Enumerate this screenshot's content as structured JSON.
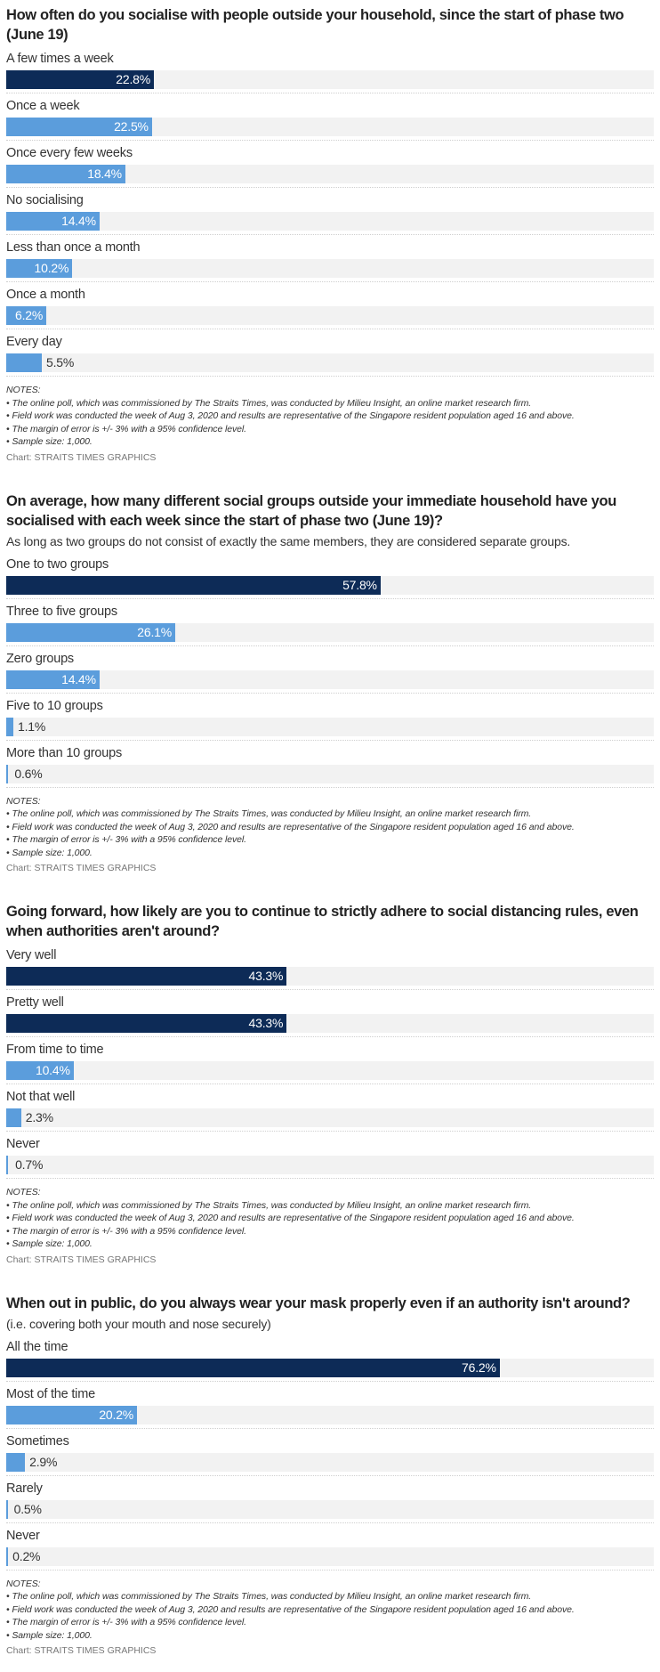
{
  "colors": {
    "highlight": "#0d2b57",
    "bar": "#5b9ddc",
    "track": "#f2f2f2"
  },
  "notes_heading": "NOTES:",
  "notes": [
    "• The online poll, which was commissioned by The Straits Times, was conducted by Milieu Insight, an online market research firm.",
    "• Field work was conducted the week of Aug 3, 2020 and results are representative of the Singapore resident population aged 16 and above.",
    "• The margin of error is +/- 3% with a 95% confidence level.",
    "• Sample size: 1,000."
  ],
  "credit": "Chart: STRAITS TIMES GRAPHICS",
  "chart_data": [
    {
      "type": "bar",
      "title": "How often do you socialise with people outside your household, since the start of phase two (June 19)",
      "subtitle": "",
      "unit": "%",
      "xlim": [
        0,
        100
      ],
      "categories": [
        "A few times a week",
        "Once a week",
        "Once every few weeks",
        "No socialising",
        "Less than once a month",
        "Once a month",
        "Every day"
      ],
      "values": [
        22.8,
        22.5,
        18.4,
        14.4,
        10.2,
        6.2,
        5.5
      ],
      "labels": [
        "22.8%",
        "22.5%",
        "18.4%",
        "14.4%",
        "10.2%",
        "6.2%",
        "5.5%"
      ]
    },
    {
      "type": "bar",
      "title": "On average, how many different social groups outside your immediate household have you socialised with each week since the start of phase two (June 19)?",
      "subtitle": "As long as two groups do not consist of exactly the same members, they are considered separate groups.",
      "unit": "%",
      "xlim": [
        0,
        100
      ],
      "categories": [
        "One to two groups",
        "Three to five groups",
        "Zero groups",
        "Five to 10 groups",
        "More than 10 groups"
      ],
      "values": [
        57.8,
        26.1,
        14.4,
        1.1,
        0.6
      ],
      "labels": [
        "57.8%",
        "26.1%",
        "14.4%",
        "1.1%",
        "0.6%"
      ]
    },
    {
      "type": "bar",
      "title": "Going forward, how likely are you to continue to strictly adhere to social distancing rules, even when authorities aren't around?",
      "subtitle": "",
      "unit": "%",
      "xlim": [
        0,
        100
      ],
      "categories": [
        "Very well",
        "Pretty well",
        "From time to time",
        "Not that well",
        "Never"
      ],
      "values": [
        43.3,
        43.3,
        10.4,
        2.3,
        0.7
      ],
      "labels": [
        "43.3%",
        "43.3%",
        "10.4%",
        "2.3%",
        "0.7%"
      ]
    },
    {
      "type": "bar",
      "title": "When out in public, do you always wear your mask properly even if an authority isn't around?",
      "subtitle": "(i.e. covering both your mouth and nose securely)",
      "unit": "%",
      "xlim": [
        0,
        100
      ],
      "categories": [
        "All the time",
        "Most of the time",
        "Sometimes",
        "Rarely",
        "Never"
      ],
      "values": [
        76.2,
        20.2,
        2.9,
        0.5,
        0.2
      ],
      "labels": [
        "76.2%",
        "20.2%",
        "2.9%",
        "0.5%",
        "0.2%"
      ]
    }
  ]
}
